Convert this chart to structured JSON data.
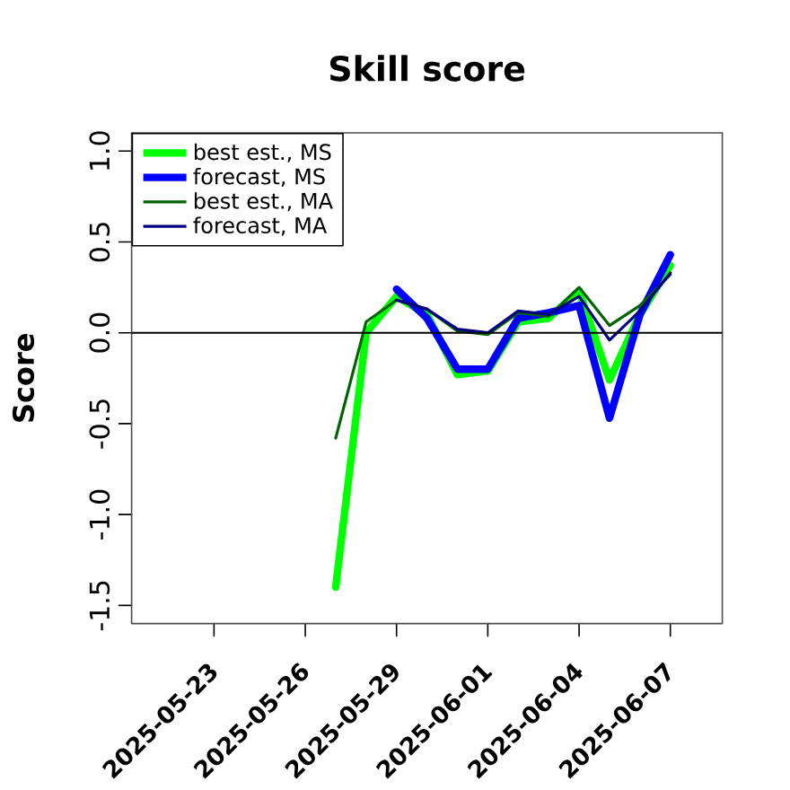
{
  "chart_data": {
    "type": "line",
    "title": "Skill score",
    "ylabel": "Score",
    "x": [
      "2025-05-27",
      "2025-05-28",
      "2025-05-29",
      "2025-05-30",
      "2025-05-31",
      "2025-06-01",
      "2025-06-02",
      "2025-06-03",
      "2025-06-04",
      "2025-06-05",
      "2025-06-06",
      "2025-06-07"
    ],
    "series": [
      {
        "name": "best est., MS",
        "color": "#00ff00",
        "values": [
          -1.4,
          0.0,
          0.2,
          0.1,
          -0.23,
          -0.21,
          0.06,
          0.08,
          0.23,
          -0.26,
          0.1,
          0.37
        ]
      },
      {
        "name": "forecast, MS",
        "color": "#0000ff",
        "values": [
          null,
          null,
          0.24,
          0.08,
          -0.2,
          -0.2,
          0.08,
          0.11,
          0.15,
          -0.47,
          0.1,
          0.43
        ]
      },
      {
        "name": "best est., MA",
        "color": "#006400",
        "values": [
          -0.58,
          0.06,
          0.18,
          0.13,
          0.01,
          -0.01,
          0.11,
          0.09,
          0.25,
          0.04,
          0.15,
          0.32
        ]
      },
      {
        "name": "forecast, MA",
        "color": "#000080",
        "values": [
          null,
          null,
          0.18,
          0.13,
          0.02,
          0.0,
          0.12,
          0.1,
          0.2,
          -0.04,
          0.12,
          0.33
        ]
      }
    ],
    "xlim": [
      "2025-05-20T07:00",
      "2025-06-08T17:00"
    ],
    "xticks": [
      "2025-05-23",
      "2025-05-26",
      "2025-05-29",
      "2025-06-01",
      "2025-06-04",
      "2025-06-07"
    ],
    "ylim": [
      -1.6,
      1.1
    ],
    "yticks": [
      -1.5,
      {
        "value": -1,
        "label": "-1.0"
      },
      -0.5,
      {
        "value": 0,
        "label": "0.0"
      },
      0.5,
      {
        "value": 1,
        "label": "1.0"
      }
    ],
    "ref_lines": [
      {
        "axis": "y",
        "value": 0,
        "color": "#000000"
      }
    ],
    "legend": "top left",
    "line_style": "solid"
  }
}
